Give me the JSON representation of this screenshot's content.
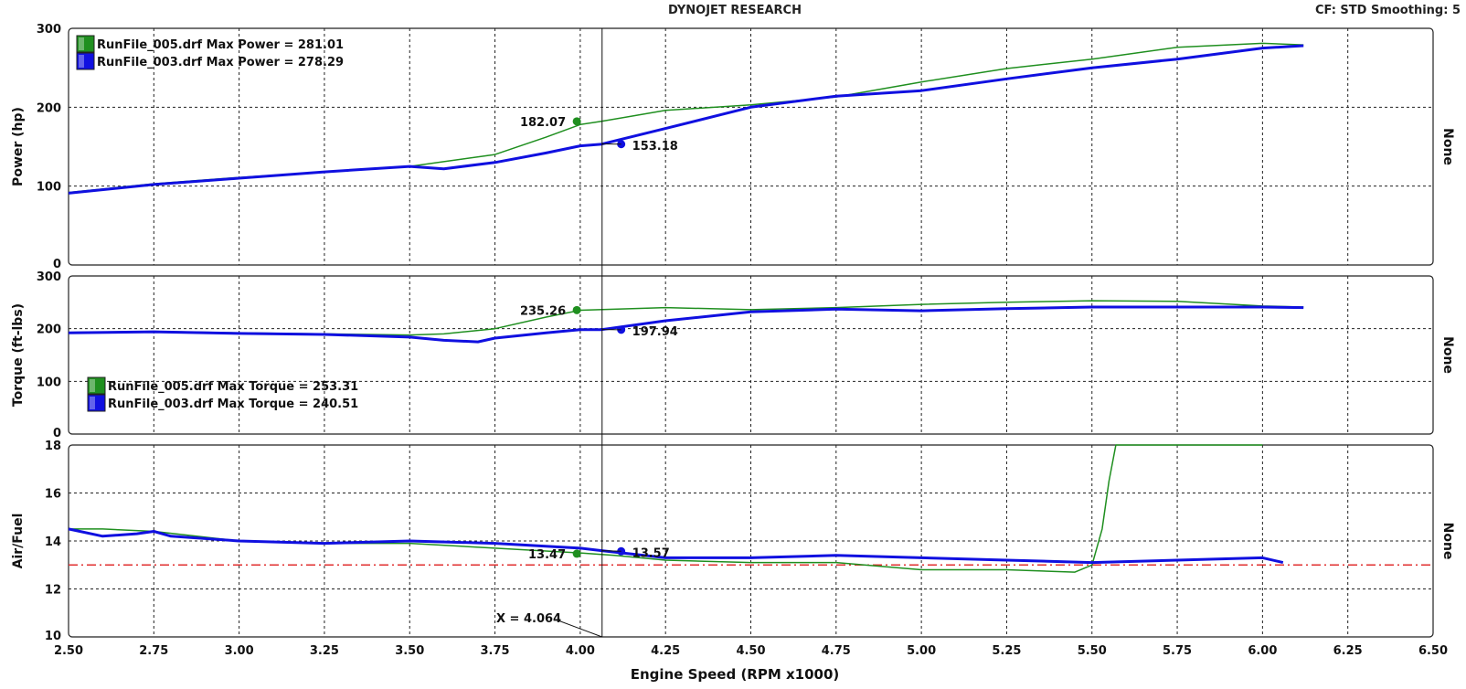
{
  "header": {
    "title": "DYNOJET RESEARCH",
    "info": "CF: STD  Smoothing: 5"
  },
  "colors": {
    "green": "#1f8f1f",
    "blue": "#1010e0",
    "afr_target": "#e03030"
  },
  "x_axis": {
    "label": "Engine Speed (RPM x1000)",
    "range": [
      2.5,
      6.5
    ],
    "ticks": [
      "2.50",
      "2.75",
      "3.00",
      "3.25",
      "3.50",
      "3.75",
      "4.00",
      "4.25",
      "4.50",
      "4.75",
      "5.00",
      "5.25",
      "5.50",
      "5.75",
      "6.00",
      "6.25",
      "6.50"
    ]
  },
  "cursor": {
    "x": 4.064,
    "label": "X = 4.064"
  },
  "panels": {
    "power": {
      "ylabel": "Power (hp)",
      "right_label": "None",
      "ylim": [
        0,
        300
      ],
      "ticks": [
        "0",
        "100",
        "200",
        "300"
      ],
      "legend": [
        {
          "text": "RunFile_005.drf Max Power = 281.01",
          "color": "#1f8f1f"
        },
        {
          "text": "RunFile_003.drf Max Power = 278.29",
          "color": "#1010e0"
        }
      ],
      "annotations": [
        {
          "text": "182.07",
          "color": "#1f8f1f"
        },
        {
          "text": "153.18",
          "color": "#1010e0"
        }
      ]
    },
    "torque": {
      "ylabel": "Torque (ft-lbs)",
      "right_label": "None",
      "ylim": [
        0,
        300
      ],
      "ticks": [
        "0",
        "100",
        "200",
        "300"
      ],
      "legend": [
        {
          "text": "RunFile_005.drf Max Torque = 253.31",
          "color": "#1f8f1f"
        },
        {
          "text": "RunFile_003.drf Max Torque = 240.51",
          "color": "#1010e0"
        }
      ],
      "annotations": [
        {
          "text": "235.26",
          "color": "#1f8f1f"
        },
        {
          "text": "197.94",
          "color": "#1010e0"
        }
      ]
    },
    "afr": {
      "ylabel": "Air/Fuel",
      "right_label": "None",
      "ylim": [
        10,
        18
      ],
      "ticks": [
        "10",
        "12",
        "14",
        "16",
        "18"
      ],
      "target": 13.0,
      "annotations": [
        {
          "text": "13.47",
          "color": "#1f8f1f"
        },
        {
          "text": "13.57",
          "color": "#1010e0"
        }
      ]
    }
  },
  "chart_data": [
    {
      "type": "line",
      "ylabel": "Power (hp)",
      "xlabel": "Engine Speed (RPM x1000)",
      "xlim": [
        2.5,
        6.5
      ],
      "ylim": [
        0,
        300
      ],
      "grid": true,
      "legend_position": "top-left",
      "series": [
        {
          "name": "RunFile_005.drf",
          "color": "#1f8f1f",
          "x": [
            2.5,
            2.75,
            3.0,
            3.25,
            3.5,
            3.6,
            3.75,
            3.9,
            4.0,
            4.06,
            4.25,
            4.5,
            4.75,
            5.0,
            5.25,
            5.5,
            5.75,
            6.0,
            6.12
          ],
          "y": [
            92,
            103,
            111,
            118,
            125,
            131,
            140,
            162,
            178,
            182,
            196,
            203,
            213,
            232,
            249,
            261,
            276,
            281,
            279
          ]
        },
        {
          "name": "RunFile_003.drf",
          "color": "#1010e0",
          "x": [
            2.5,
            2.75,
            3.0,
            3.25,
            3.5,
            3.6,
            3.75,
            3.9,
            4.0,
            4.06,
            4.25,
            4.5,
            4.75,
            5.0,
            5.25,
            5.5,
            5.75,
            6.0,
            6.12
          ],
          "y": [
            91,
            102,
            110,
            118,
            125,
            122,
            130,
            142,
            151,
            153,
            173,
            200,
            214,
            221,
            236,
            250,
            261,
            275,
            278
          ]
        }
      ]
    },
    {
      "type": "line",
      "ylabel": "Torque (ft-lbs)",
      "xlabel": "Engine Speed (RPM x1000)",
      "xlim": [
        2.5,
        6.5
      ],
      "ylim": [
        0,
        300
      ],
      "grid": true,
      "legend_position": "bottom-left",
      "series": [
        {
          "name": "RunFile_005.drf",
          "color": "#1f8f1f",
          "x": [
            2.5,
            2.75,
            3.0,
            3.25,
            3.5,
            3.6,
            3.75,
            3.9,
            4.0,
            4.25,
            4.5,
            4.75,
            5.0,
            5.25,
            5.5,
            5.75,
            6.0,
            6.12
          ],
          "y": [
            193,
            195,
            192,
            190,
            188,
            190,
            200,
            222,
            235,
            240,
            236,
            240,
            246,
            250,
            253,
            252,
            243,
            241
          ]
        },
        {
          "name": "RunFile_003.drf",
          "color": "#1010e0",
          "x": [
            2.5,
            2.75,
            3.0,
            3.25,
            3.5,
            3.6,
            3.7,
            3.75,
            3.9,
            4.0,
            4.06,
            4.25,
            4.5,
            4.75,
            5.0,
            5.25,
            5.5,
            5.75,
            6.0,
            6.12
          ],
          "y": [
            192,
            194,
            191,
            189,
            184,
            178,
            175,
            182,
            192,
            198,
            198,
            215,
            232,
            237,
            234,
            238,
            241,
            241,
            241,
            240
          ]
        }
      ]
    },
    {
      "type": "line",
      "ylabel": "Air/Fuel",
      "xlabel": "Engine Speed (RPM x1000)",
      "xlim": [
        2.5,
        6.5
      ],
      "ylim": [
        10,
        18
      ],
      "grid": true,
      "target_line": 13.0,
      "series": [
        {
          "name": "RunFile_005.drf",
          "color": "#1f8f1f",
          "x": [
            2.5,
            2.6,
            2.75,
            3.0,
            3.25,
            3.5,
            3.75,
            4.0,
            4.1,
            4.25,
            4.5,
            4.75,
            5.0,
            5.25,
            5.45,
            5.5,
            5.53,
            5.55,
            5.57,
            6.0
          ],
          "y": [
            14.5,
            14.5,
            14.4,
            14.0,
            13.9,
            13.9,
            13.7,
            13.5,
            13.4,
            13.2,
            13.1,
            13.1,
            12.8,
            12.8,
            12.7,
            13.0,
            14.5,
            16.5,
            18.0,
            18.0
          ]
        },
        {
          "name": "RunFile_003.drf",
          "color": "#1010e0",
          "x": [
            2.5,
            2.6,
            2.7,
            2.75,
            2.8,
            3.0,
            3.25,
            3.5,
            3.75,
            4.0,
            4.06,
            4.25,
            4.5,
            4.75,
            5.0,
            5.25,
            5.5,
            5.75,
            6.0,
            6.06
          ],
          "y": [
            14.5,
            14.2,
            14.3,
            14.4,
            14.2,
            14.0,
            13.9,
            14.0,
            13.9,
            13.7,
            13.6,
            13.3,
            13.3,
            13.4,
            13.3,
            13.2,
            13.1,
            13.2,
            13.3,
            13.1
          ]
        }
      ]
    }
  ]
}
